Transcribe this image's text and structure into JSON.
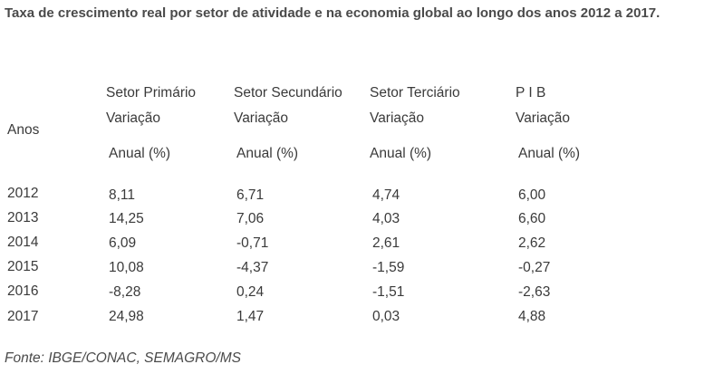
{
  "title": "Taxa de crescimento real por setor de atividade e na economia global ao longo dos anos 2012 a 2017.",
  "table": {
    "year_header": "Anos",
    "columns": [
      {
        "name": "Setor Primário",
        "sub1": "Variação",
        "sub2": "Anual (%)"
      },
      {
        "name": "Setor Secundário",
        "sub1": "Variação",
        "sub2": "Anual (%)"
      },
      {
        "name": "Setor Terciário",
        "sub1": "Variação",
        "sub2": "Anual (%)"
      },
      {
        "name": "P I B",
        "sub1": "Variação",
        "sub2": "Anual (%)"
      }
    ],
    "rows": [
      {
        "year": "2012",
        "values": [
          "8,11",
          "6,71",
          "4,74",
          "6,00"
        ]
      },
      {
        "year": "2013",
        "values": [
          "14,25",
          "7,06",
          "4,03",
          "6,60"
        ]
      },
      {
        "year": "2014",
        "values": [
          "6,09",
          "-0,71",
          "2,61",
          "2,62"
        ]
      },
      {
        "year": "2015",
        "values": [
          "10,08",
          "-4,37",
          "-1,59",
          "-0,27"
        ]
      },
      {
        "year": "2016",
        "values": [
          "-8,28",
          "0,24",
          "-1,51",
          "-2,63"
        ]
      },
      {
        "year": "2017",
        "values": [
          "24,98",
          "1,47",
          "0,03",
          "4,88"
        ]
      }
    ]
  },
  "source": "Fonte: IBGE/CONAC, SEMAGRO/MS"
}
